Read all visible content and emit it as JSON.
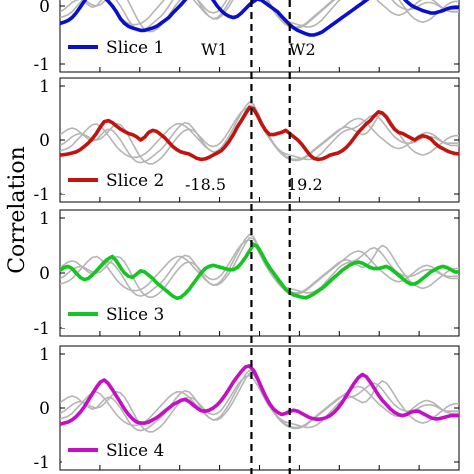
{
  "chart_data": [
    {
      "type": "line",
      "ylabel": "Correlation",
      "ylim": [
        -1,
        1
      ],
      "yticks": [
        -1,
        0,
        1
      ],
      "x": [
        0,
        1,
        2,
        3,
        4,
        5,
        6,
        7,
        8,
        9,
        10,
        11,
        12,
        13,
        14,
        15,
        16,
        17,
        18,
        19,
        20,
        21,
        22,
        23,
        24,
        25,
        26,
        27,
        28,
        29,
        30,
        31,
        32,
        33,
        34,
        35,
        36,
        37,
        38,
        39,
        40,
        41,
        42,
        43,
        44,
        45,
        46,
        47,
        48,
        49,
        50,
        51,
        52,
        53,
        54,
        55,
        56,
        57,
        58,
        59,
        60,
        61,
        62,
        63,
        64,
        65,
        66,
        67,
        68,
        69,
        70,
        71,
        72,
        73,
        74,
        75,
        76,
        77,
        78,
        79,
        80,
        81,
        82,
        83,
        84,
        85,
        86,
        87,
        88,
        89,
        90,
        91,
        92,
        93,
        94,
        95,
        96,
        97,
        98,
        99
      ],
      "xlim": [
        0,
        99
      ],
      "vlines": [
        {
          "x": 47.5,
          "label": "W1"
        },
        {
          "x": 57.0,
          "label": "W2"
        }
      ],
      "series": [
        {
          "name": "Slice 1",
          "color": "#0a10c9",
          "values": [
            -0.3,
            -0.28,
            -0.25,
            -0.2,
            -0.12,
            -0.02,
            0.08,
            0.18,
            0.24,
            0.26,
            0.22,
            0.15,
            0.08,
            0.0,
            -0.1,
            -0.22,
            -0.3,
            -0.35,
            -0.38,
            -0.4,
            -0.42,
            -0.42,
            -0.4,
            -0.38,
            -0.35,
            -0.3,
            -0.25,
            -0.2,
            -0.12,
            -0.05,
            0.02,
            0.1,
            0.18,
            0.25,
            0.3,
            0.32,
            0.28,
            0.2,
            0.1,
            0.0,
            -0.08,
            -0.14,
            -0.18,
            -0.2,
            -0.18,
            -0.12,
            -0.05,
            0.02,
            0.08,
            0.12,
            0.1,
            0.05,
            0.0,
            -0.05,
            -0.1,
            -0.18,
            -0.25,
            -0.32,
            -0.38,
            -0.42,
            -0.45,
            -0.48,
            -0.5,
            -0.5,
            -0.48,
            -0.45,
            -0.4,
            -0.35,
            -0.3,
            -0.25,
            -0.2,
            -0.15,
            -0.1,
            -0.05,
            0.0,
            0.05,
            0.1,
            0.15,
            0.2,
            0.25,
            0.3,
            0.33,
            0.3,
            0.25,
            0.2,
            0.15,
            0.08,
            0.02,
            -0.02,
            -0.05,
            -0.08,
            -0.1,
            -0.12,
            -0.12,
            -0.1,
            -0.08,
            -0.05,
            -0.03,
            -0.02,
            -0.02
          ]
        },
        {
          "name": "Slice 2",
          "color": "#c0140e",
          "values": [
            -0.28,
            -0.27,
            -0.26,
            -0.24,
            -0.22,
            -0.18,
            -0.12,
            -0.06,
            0.02,
            0.12,
            0.24,
            0.34,
            0.36,
            0.32,
            0.26,
            0.2,
            0.16,
            0.12,
            0.1,
            0.06,
            0.0,
            0.05,
            0.14,
            0.18,
            0.16,
            0.1,
            0.04,
            -0.04,
            -0.12,
            -0.18,
            -0.22,
            -0.24,
            -0.26,
            -0.3,
            -0.34,
            -0.36,
            -0.35,
            -0.32,
            -0.28,
            -0.24,
            -0.2,
            -0.12,
            -0.02,
            0.1,
            0.24,
            0.36,
            0.48,
            0.6,
            0.58,
            0.45,
            0.3,
            0.18,
            0.1,
            0.1,
            0.12,
            0.14,
            0.18,
            0.12,
            0.06,
            0.0,
            -0.08,
            -0.18,
            -0.28,
            -0.34,
            -0.36,
            -0.35,
            -0.32,
            -0.28,
            -0.26,
            -0.24,
            -0.2,
            -0.14,
            -0.06,
            0.04,
            0.14,
            0.22,
            0.3,
            0.36,
            0.45,
            0.52,
            0.5,
            0.42,
            0.3,
            0.2,
            0.14,
            0.12,
            0.08,
            0.04,
            0.0,
            0.05,
            0.08,
            0.06,
            0.02,
            -0.06,
            -0.12,
            -0.16,
            -0.2,
            -0.23,
            -0.25,
            -0.26
          ]
        },
        {
          "name": "Slice 3",
          "color": "#14c41f",
          "values": [
            0.05,
            0.1,
            0.12,
            0.08,
            0.0,
            -0.08,
            -0.12,
            -0.1,
            -0.04,
            0.04,
            0.12,
            0.2,
            0.26,
            0.3,
            0.22,
            0.1,
            0.0,
            -0.06,
            -0.08,
            -0.02,
            0.04,
            0.02,
            -0.04,
            -0.1,
            -0.18,
            -0.24,
            -0.3,
            -0.36,
            -0.42,
            -0.46,
            -0.44,
            -0.38,
            -0.3,
            -0.2,
            -0.1,
            0.0,
            0.08,
            0.12,
            0.14,
            0.12,
            0.1,
            0.08,
            0.06,
            0.06,
            0.1,
            0.18,
            0.28,
            0.4,
            0.52,
            0.48,
            0.36,
            0.22,
            0.1,
            0.0,
            -0.1,
            -0.2,
            -0.3,
            -0.36,
            -0.4,
            -0.42,
            -0.44,
            -0.45,
            -0.42,
            -0.38,
            -0.33,
            -0.28,
            -0.22,
            -0.15,
            -0.08,
            -0.02,
            0.05,
            0.1,
            0.15,
            0.18,
            0.2,
            0.18,
            0.14,
            0.1,
            0.08,
            0.08,
            0.1,
            0.12,
            0.08,
            0.02,
            -0.04,
            -0.1,
            -0.16,
            -0.2,
            -0.2,
            -0.16,
            -0.1,
            -0.04,
            0.02,
            0.06,
            0.1,
            0.12,
            0.1,
            0.06,
            0.02,
            0.02
          ]
        },
        {
          "name": "Slice 4",
          "color": "#c40fc4",
          "values": [
            -0.3,
            -0.28,
            -0.26,
            -0.22,
            -0.16,
            -0.08,
            0.02,
            0.14,
            0.26,
            0.38,
            0.48,
            0.52,
            0.45,
            0.34,
            0.22,
            0.1,
            -0.02,
            -0.12,
            -0.2,
            -0.26,
            -0.28,
            -0.28,
            -0.26,
            -0.22,
            -0.18,
            -0.12,
            -0.06,
            0.0,
            0.06,
            0.1,
            0.14,
            0.16,
            0.12,
            0.06,
            0.0,
            -0.05,
            -0.06,
            -0.04,
            0.0,
            0.06,
            0.14,
            0.24,
            0.36,
            0.48,
            0.58,
            0.68,
            0.76,
            0.78,
            0.7,
            0.55,
            0.38,
            0.22,
            0.08,
            -0.02,
            -0.08,
            -0.12,
            -0.1,
            -0.06,
            -0.04,
            -0.06,
            -0.1,
            -0.14,
            -0.18,
            -0.2,
            -0.21,
            -0.2,
            -0.18,
            -0.14,
            -0.08,
            0.0,
            0.1,
            0.22,
            0.34,
            0.46,
            0.56,
            0.62,
            0.58,
            0.48,
            0.36,
            0.24,
            0.14,
            0.06,
            -0.02,
            -0.08,
            -0.12,
            -0.14,
            -0.12,
            -0.08,
            -0.06,
            -0.06,
            -0.1,
            -0.14,
            -0.18,
            -0.2,
            -0.2,
            -0.18,
            -0.16,
            -0.14,
            -0.14,
            -0.14
          ]
        }
      ],
      "reference_series": [
        {
          "name": "",
          "color": "#b5b5b5",
          "values": [
            0.1,
            0.15,
            0.2,
            0.22,
            0.2,
            0.14,
            0.08,
            0.02,
            -0.02,
            0.0,
            0.08,
            0.16,
            0.2,
            0.18,
            0.1,
            0.0,
            -0.12,
            -0.24,
            -0.34,
            -0.4,
            -0.42,
            -0.4,
            -0.36,
            -0.3,
            -0.24,
            -0.18,
            -0.1,
            0.0,
            0.1,
            0.2,
            0.28,
            0.32,
            0.3,
            0.22,
            0.12,
            0.0,
            -0.1,
            -0.18,
            -0.22,
            -0.2,
            -0.14,
            -0.04,
            0.08,
            0.22,
            0.36,
            0.5,
            0.62,
            0.7,
            0.66,
            0.52,
            0.36,
            0.2,
            0.06,
            -0.06,
            -0.16,
            -0.24,
            -0.3,
            -0.34,
            -0.36,
            -0.36,
            -0.34,
            -0.3,
            -0.24,
            -0.18,
            -0.12,
            -0.06,
            0.0,
            0.06,
            0.12,
            0.18,
            0.22,
            0.24,
            0.22,
            0.18,
            0.14,
            0.1,
            0.12,
            0.2,
            0.32,
            0.44,
            0.5,
            0.46,
            0.36,
            0.24,
            0.12,
            0.02,
            -0.08,
            -0.16,
            -0.22,
            -0.26,
            -0.28,
            -0.26,
            -0.22,
            -0.16,
            -0.1,
            -0.04,
            0.02,
            0.06,
            0.08,
            0.08
          ]
        },
        {
          "name": "",
          "color": "#b5b5b5",
          "values": [
            -0.2,
            -0.18,
            -0.15,
            -0.1,
            -0.02,
            0.06,
            0.14,
            0.22,
            0.28,
            0.3,
            0.26,
            0.18,
            0.08,
            -0.02,
            -0.12,
            -0.2,
            -0.26,
            -0.3,
            -0.32,
            -0.32,
            -0.3,
            -0.26,
            -0.2,
            -0.12,
            -0.04,
            0.04,
            0.12,
            0.2,
            0.26,
            0.3,
            0.3,
            0.26,
            0.2,
            0.12,
            0.04,
            -0.04,
            -0.12,
            -0.18,
            -0.22,
            -0.22,
            -0.18,
            -0.1,
            0.0,
            0.12,
            0.26,
            0.4,
            0.54,
            0.64,
            0.62,
            0.5,
            0.34,
            0.18,
            0.04,
            -0.08,
            -0.18,
            -0.26,
            -0.32,
            -0.36,
            -0.38,
            -0.38,
            -0.36,
            -0.32,
            -0.26,
            -0.2,
            -0.14,
            -0.08,
            -0.02,
            0.04,
            0.1,
            0.16,
            0.22,
            0.28,
            0.34,
            0.38,
            0.4,
            0.38,
            0.32,
            0.24,
            0.16,
            0.08,
            0.02,
            -0.04,
            -0.1,
            -0.14,
            -0.16,
            -0.14,
            -0.1,
            -0.04,
            0.02,
            0.08,
            0.12,
            0.14,
            0.12,
            0.08,
            0.02,
            -0.04,
            -0.08,
            -0.1,
            -0.1,
            -0.1
          ]
        },
        {
          "name": "",
          "color": "#b5b5b5",
          "values": [
            -0.1,
            -0.06,
            0.0,
            0.06,
            0.1,
            0.12,
            0.1,
            0.06,
            0.02,
            0.0,
            0.02,
            0.08,
            0.16,
            0.24,
            0.3,
            0.28,
            0.2,
            0.08,
            -0.06,
            -0.2,
            -0.32,
            -0.4,
            -0.44,
            -0.44,
            -0.4,
            -0.34,
            -0.26,
            -0.16,
            -0.06,
            0.04,
            0.12,
            0.18,
            0.2,
            0.18,
            0.12,
            0.04,
            -0.04,
            -0.1,
            -0.12,
            -0.1,
            -0.04,
            0.06,
            0.18,
            0.3,
            0.42,
            0.52,
            0.58,
            0.6,
            0.54,
            0.42,
            0.28,
            0.14,
            0.02,
            -0.08,
            -0.16,
            -0.22,
            -0.26,
            -0.28,
            -0.3,
            -0.32,
            -0.34,
            -0.36,
            -0.36,
            -0.34,
            -0.3,
            -0.24,
            -0.16,
            -0.08,
            0.0,
            0.08,
            0.14,
            0.18,
            0.2,
            0.22,
            0.26,
            0.32,
            0.38,
            0.44,
            0.46,
            0.42,
            0.34,
            0.24,
            0.14,
            0.06,
            0.0,
            -0.04,
            -0.06,
            -0.06,
            -0.04,
            0.0,
            0.04,
            0.06,
            0.06,
            0.04,
            0.0,
            -0.04,
            -0.06,
            -0.06,
            -0.06,
            -0.06
          ]
        }
      ],
      "annotations": [
        "W1",
        "W2",
        "-18.5",
        "19.2"
      ]
    }
  ]
}
